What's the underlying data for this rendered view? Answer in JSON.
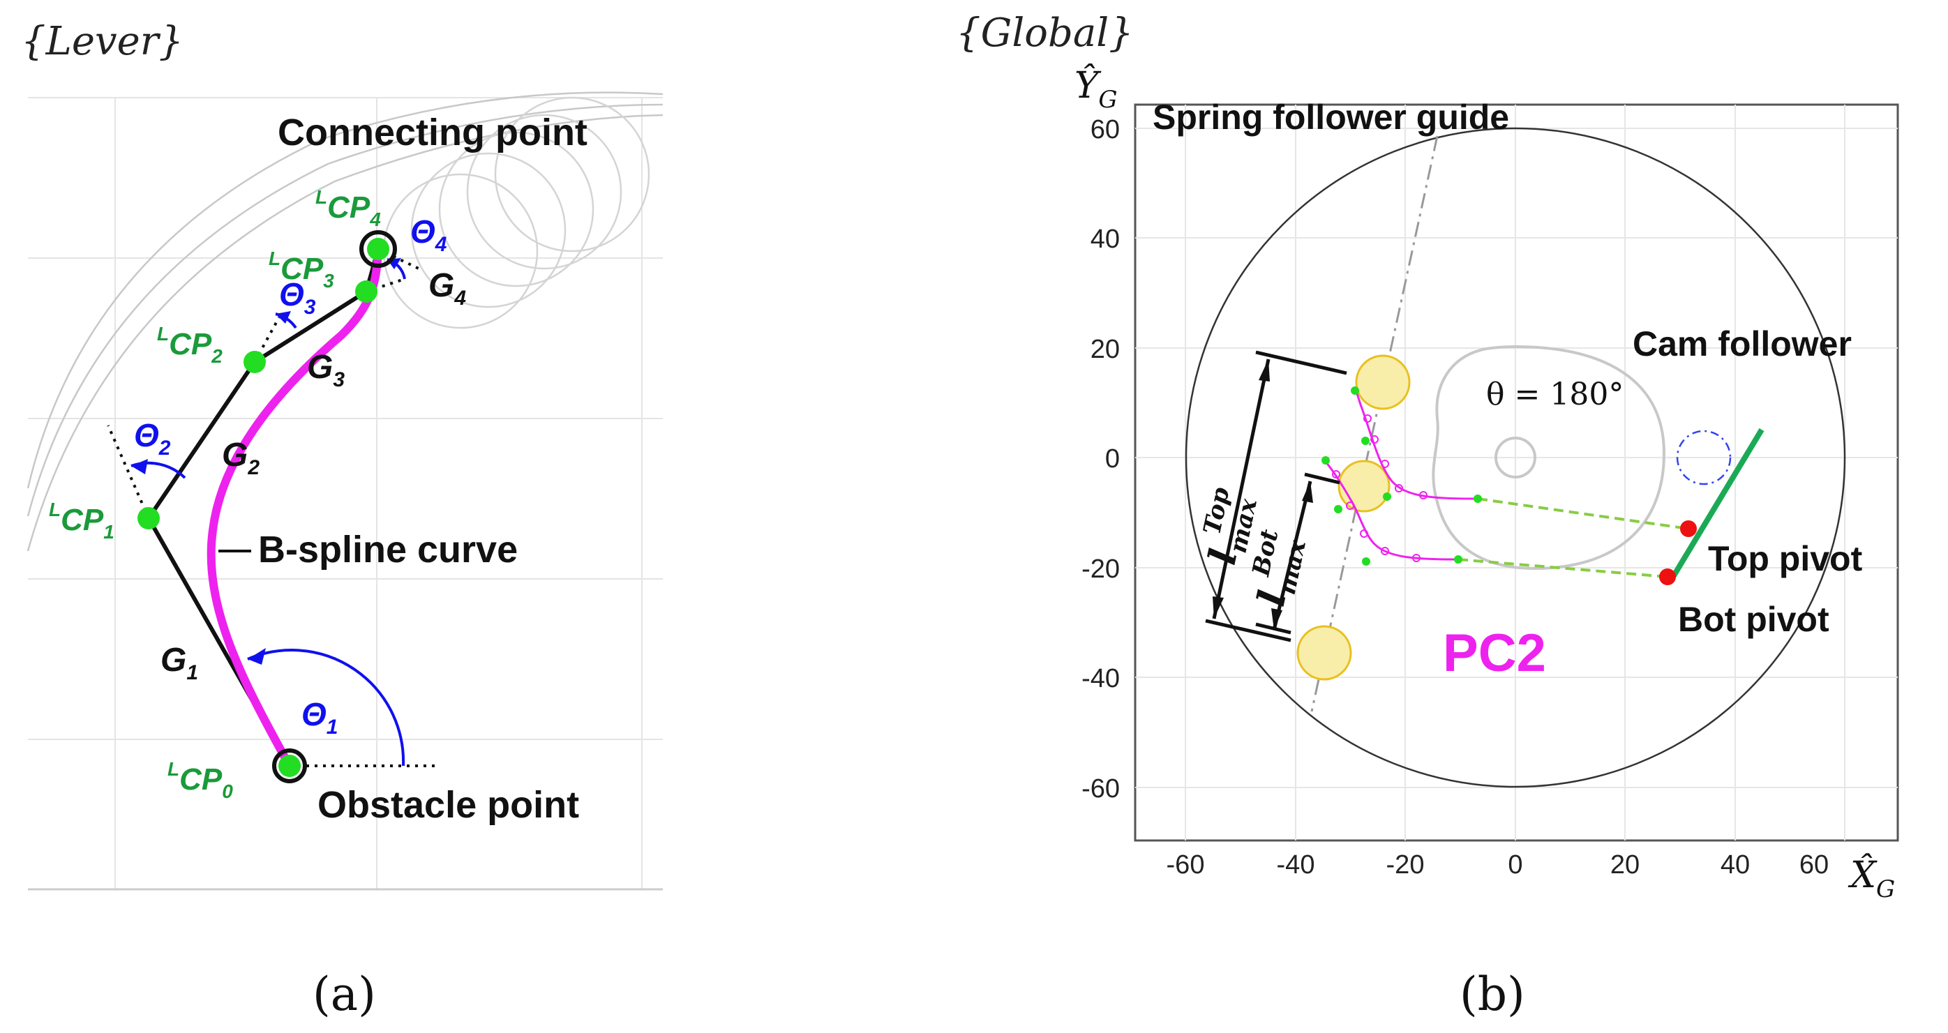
{
  "panel_a": {
    "frame_label": "{Lever}",
    "caption": "(a)",
    "connecting_point_label": "Connecting point",
    "obstacle_point_label": "Obstacle point",
    "bspline_label": "B-spline curve",
    "control_points": [
      {
        "sup": "L",
        "base": "CP",
        "sub": "0"
      },
      {
        "sup": "L",
        "base": "CP",
        "sub": "1"
      },
      {
        "sup": "L",
        "base": "CP",
        "sub": "2"
      },
      {
        "sup": "L",
        "base": "CP",
        "sub": "3"
      },
      {
        "sup": "L",
        "base": "CP",
        "sub": "4"
      }
    ],
    "segments": [
      {
        "base": "G",
        "sub": "1"
      },
      {
        "base": "G",
        "sub": "2"
      },
      {
        "base": "G",
        "sub": "3"
      },
      {
        "base": "G",
        "sub": "4"
      }
    ],
    "angles": [
      {
        "base": "Θ",
        "sub": "1"
      },
      {
        "base": "Θ",
        "sub": "2"
      },
      {
        "base": "Θ",
        "sub": "3"
      },
      {
        "base": "Θ",
        "sub": "4"
      }
    ],
    "colors": {
      "control_point": "#22dd22",
      "cp_label": "#1a9a3a",
      "angle": "#1010ee",
      "curve": "#ee22ee",
      "polygon": "#111111"
    }
  },
  "panel_b": {
    "frame_label": "{Global}",
    "caption": "(b)",
    "y_axis_label": {
      "base": "Ŷ",
      "sub": "G"
    },
    "x_axis_label": {
      "base": "X̂",
      "sub": "G"
    },
    "x_ticks": [
      "-60",
      "-40",
      "-20",
      "0",
      "20",
      "40",
      "60"
    ],
    "y_ticks": [
      "60",
      "40",
      "20",
      "0",
      "-20",
      "-40",
      "-60"
    ],
    "spring_guide_label": "Spring follower guide",
    "cam_follower_label": "Cam follower",
    "theta_label": "θ = 180°",
    "top_pivot_label": "Top pivot",
    "bot_pivot_label": "Bot pivot",
    "pc_label": "PC2",
    "l_top_label": {
      "base": "l",
      "sup": "Top",
      "sub": "max"
    },
    "l_bot_label": {
      "base": "l",
      "sup": "Bot",
      "sub": "max"
    },
    "colors": {
      "pivot": "#ee1111",
      "path": "#ee22ee",
      "lever": "#1aaa55",
      "dashed": "#88cc44",
      "yellow_fill": "#f8eeaa",
      "yellow_stroke": "#e8c020",
      "follower": "#3344ee"
    }
  }
}
